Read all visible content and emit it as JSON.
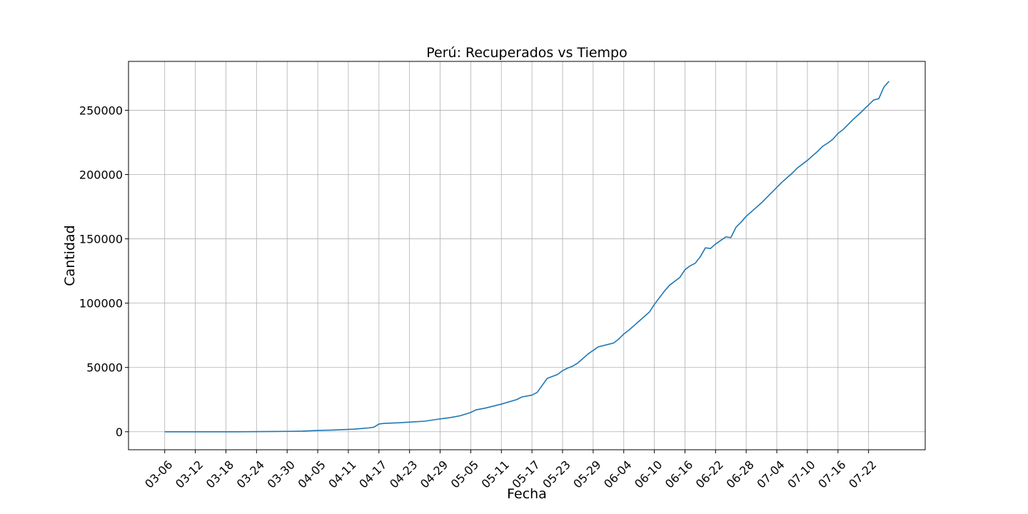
{
  "chart_data": {
    "type": "line",
    "title": "Perú: Recuperados vs Tiempo",
    "xlabel": "Fecha",
    "ylabel": "Cantidad",
    "grid": true,
    "x_start": "03-06",
    "x_end": "07-26",
    "ylim": [
      -14000,
      288000
    ],
    "yticks": [
      0,
      50000,
      100000,
      150000,
      200000,
      250000
    ],
    "xticks": [
      "03-06",
      "03-12",
      "03-18",
      "03-24",
      "03-30",
      "04-05",
      "04-11",
      "04-17",
      "04-23",
      "04-29",
      "05-05",
      "05-11",
      "05-17",
      "05-23",
      "05-29",
      "06-04",
      "06-10",
      "06-16",
      "06-22",
      "06-28",
      "07-04",
      "07-10",
      "07-16",
      "07-22"
    ],
    "series": [
      {
        "color": "#1f77b4",
        "points": [
          [
            "03-06",
            0
          ],
          [
            "03-10",
            0
          ],
          [
            "03-20",
            0
          ],
          [
            "03-30",
            300
          ],
          [
            "04-02",
            500
          ],
          [
            "04-05",
            1000
          ],
          [
            "04-08",
            1300
          ],
          [
            "04-12",
            2000
          ],
          [
            "04-15",
            3000
          ],
          [
            "04-16",
            3500
          ],
          [
            "04-17",
            6000
          ],
          [
            "04-18",
            6500
          ],
          [
            "04-21",
            7000
          ],
          [
            "04-23",
            7500
          ],
          [
            "04-26",
            8200
          ],
          [
            "04-29",
            10000
          ],
          [
            "05-01",
            11000
          ],
          [
            "05-03",
            12500
          ],
          [
            "05-05",
            15000
          ],
          [
            "05-06",
            17000
          ],
          [
            "05-08",
            18500
          ],
          [
            "05-11",
            21500
          ],
          [
            "05-14",
            25000
          ],
          [
            "05-15",
            27000
          ],
          [
            "05-17",
            28500
          ],
          [
            "05-18",
            30500
          ],
          [
            "05-19",
            36000
          ],
          [
            "05-20",
            41500
          ],
          [
            "05-22",
            44500
          ],
          [
            "05-23",
            47500
          ],
          [
            "05-24",
            49500
          ],
          [
            "05-25",
            51000
          ],
          [
            "05-26",
            53500
          ],
          [
            "05-27",
            57000
          ],
          [
            "05-28",
            60500
          ],
          [
            "05-30",
            66000
          ],
          [
            "06-01",
            68000
          ],
          [
            "06-02",
            69000
          ],
          [
            "06-03",
            72000
          ],
          [
            "06-04",
            76000
          ],
          [
            "06-05",
            79000
          ],
          [
            "06-07",
            86000
          ],
          [
            "06-09",
            93000
          ],
          [
            "06-10",
            99000
          ],
          [
            "06-12",
            109500
          ],
          [
            "06-13",
            114000
          ],
          [
            "06-15",
            120000
          ],
          [
            "06-16",
            126000
          ],
          [
            "06-17",
            129000
          ],
          [
            "06-18",
            131000
          ],
          [
            "06-19",
            136000
          ],
          [
            "06-20",
            143000
          ],
          [
            "06-21",
            142500
          ],
          [
            "06-22",
            146000
          ],
          [
            "06-24",
            151500
          ],
          [
            "06-25",
            151000
          ],
          [
            "06-26",
            159000
          ],
          [
            "06-27",
            163000
          ],
          [
            "06-28",
            167500
          ],
          [
            "07-01",
            178000
          ],
          [
            "07-04",
            190000
          ],
          [
            "07-05",
            194000
          ],
          [
            "07-07",
            201000
          ],
          [
            "07-08",
            205000
          ],
          [
            "07-10",
            211000
          ],
          [
            "07-11",
            214500
          ],
          [
            "07-12",
            218000
          ],
          [
            "07-13",
            222000
          ],
          [
            "07-14",
            224500
          ],
          [
            "07-15",
            227500
          ],
          [
            "07-16",
            232000
          ],
          [
            "07-17",
            235000
          ],
          [
            "07-18",
            239000
          ],
          [
            "07-19",
            243000
          ],
          [
            "07-20",
            246500
          ],
          [
            "07-23",
            258000
          ],
          [
            "07-24",
            259000
          ],
          [
            "07-25",
            268000
          ],
          [
            "07-26",
            272500
          ]
        ]
      }
    ]
  }
}
